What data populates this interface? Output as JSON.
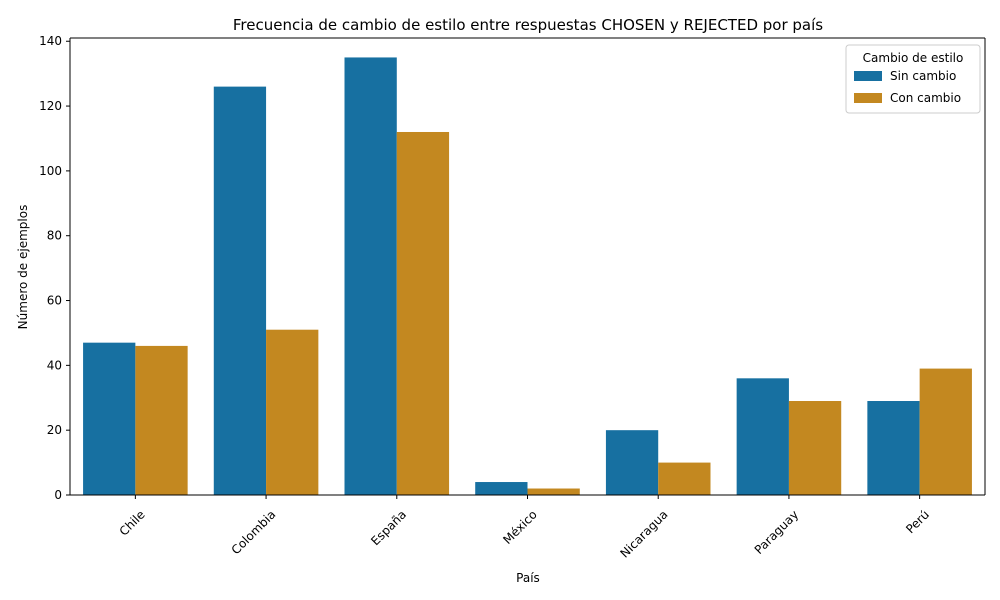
{
  "chart_data": {
    "type": "bar",
    "title": "Frecuencia de cambio de estilo entre respuestas CHOSEN y REJECTED por país",
    "xlabel": "País",
    "ylabel": "Número de ejemplos",
    "categories": [
      "Chile",
      "Colombia",
      "España",
      "México",
      "Nicaragua",
      "Paraguay",
      "Perú"
    ],
    "series": [
      {
        "name": "Sin cambio",
        "color": "#1770a1",
        "values": [
          47,
          126,
          135,
          4,
          20,
          36,
          29
        ]
      },
      {
        "name": "Con cambio",
        "color": "#c38820",
        "values": [
          46,
          51,
          112,
          2,
          10,
          29,
          39
        ]
      }
    ],
    "ylim": [
      0,
      141
    ],
    "yticks": [
      0,
      20,
      40,
      60,
      80,
      100,
      120,
      140
    ],
    "grid": false,
    "legend": {
      "title": "Cambio de estilo",
      "position": "top-right"
    }
  }
}
